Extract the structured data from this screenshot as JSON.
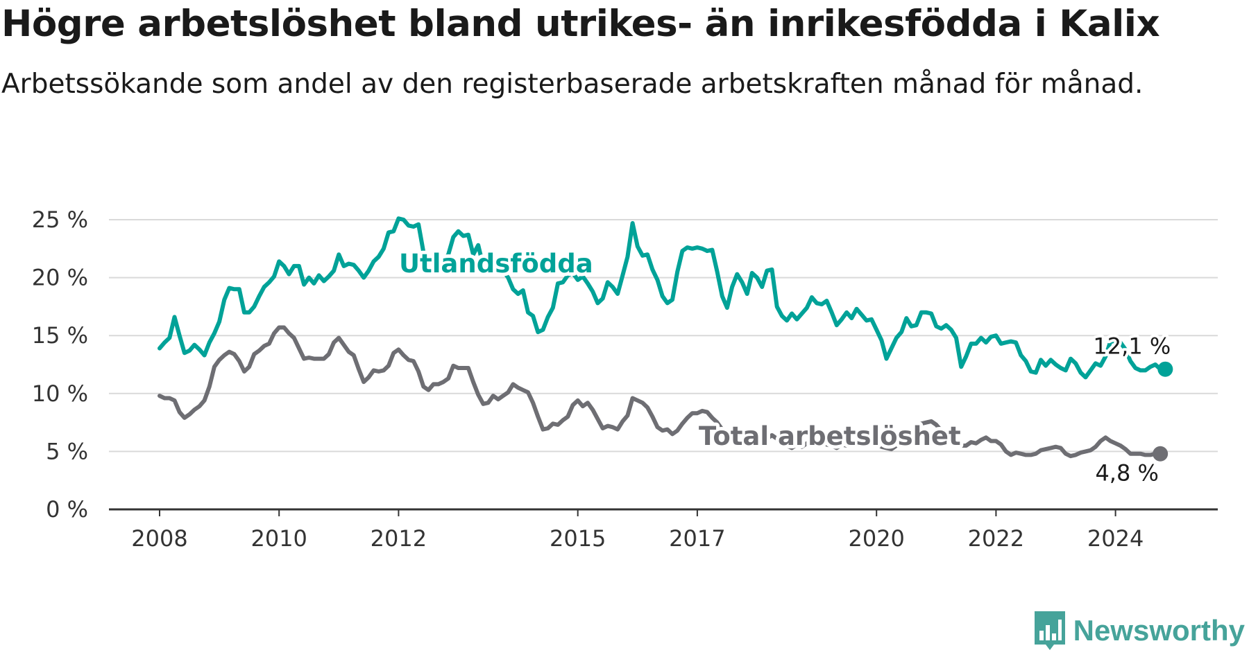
{
  "header": {
    "title": "Högre arbetslöshet bland utrikes- än inrikesfödda i Kalix",
    "subtitle": "Arbetssökande som andel av den registerbaserade arbetskraften månad för månad."
  },
  "brand": {
    "name": "Newsworthy",
    "color": "#46a39a",
    "logo_icon": "bar-chart-icon"
  },
  "chart_data": {
    "type": "line",
    "x_ticks": [
      "2008",
      "2010",
      "2012",
      "2015",
      "2017",
      "2020",
      "2022",
      "2024"
    ],
    "y_ticks": [
      "0 %",
      "5 %",
      "10 %",
      "15 %",
      "20 %",
      "25 %"
    ],
    "ylim": [
      0,
      25
    ],
    "xlim": [
      "2008-01",
      "2024-11"
    ],
    "grid": "horizontal",
    "legend": "inline labels",
    "series": [
      {
        "name": "Utlandsfödda",
        "color": "#00a298",
        "end_label": "12,1 %",
        "start": "2008-01",
        "values": [
          13.9,
          14.4,
          14.8,
          16.6,
          15.0,
          13.5,
          13.7,
          14.2,
          13.8,
          13.3,
          14.4,
          15.2,
          16.2,
          18.1,
          19.1,
          19.0,
          19.0,
          17.0,
          17.0,
          17.5,
          18.4,
          19.2,
          19.6,
          20.1,
          21.4,
          21.0,
          20.3,
          21.0,
          21.0,
          19.4,
          20.0,
          19.5,
          20.2,
          19.7,
          20.1,
          20.6,
          22.0,
          21.0,
          21.2,
          21.1,
          20.6,
          20.0,
          20.6,
          21.4,
          21.8,
          22.5,
          23.9,
          24.0,
          25.1,
          25.0,
          24.5,
          24.4,
          24.6,
          22.2,
          21.6,
          21.4,
          21.0,
          21.4,
          22.0,
          23.5,
          24.0,
          23.6,
          23.7,
          22.0,
          22.8,
          21.0,
          20.5,
          20.6,
          20.9,
          20.6,
          20.0,
          19.0,
          18.6,
          18.9,
          17.0,
          16.7,
          15.3,
          15.5,
          16.6,
          17.4,
          19.5,
          19.6,
          20.2,
          20.4,
          19.8,
          20.1,
          19.5,
          18.8,
          17.8,
          18.2,
          19.6,
          19.2,
          18.6,
          20.2,
          21.8,
          24.7,
          22.7,
          21.9,
          22.0,
          20.7,
          19.8,
          18.4,
          17.8,
          18.1,
          20.5,
          22.3,
          22.6,
          22.5,
          22.6,
          22.5,
          22.3,
          22.4,
          20.5,
          18.4,
          17.4,
          19.2,
          20.3,
          19.6,
          18.6,
          20.4,
          20.0,
          19.2,
          20.6,
          20.7,
          17.5,
          16.7,
          16.3,
          16.9,
          16.4,
          16.9,
          17.4,
          18.3,
          17.8,
          17.7,
          18.0,
          17.0,
          15.9,
          16.4,
          17.0,
          16.5,
          17.3,
          16.8,
          16.3,
          16.4,
          15.5,
          14.6,
          13.0,
          13.9,
          14.8,
          15.3,
          16.5,
          15.8,
          15.9,
          17.0,
          17.0,
          16.9,
          15.8,
          15.6,
          15.9,
          15.5,
          14.8,
          12.3,
          13.2,
          14.3,
          14.3,
          14.8,
          14.4,
          14.9,
          15.0,
          14.3,
          14.4,
          14.5,
          14.4,
          13.3,
          12.8,
          11.9,
          11.8,
          12.9,
          12.4,
          12.9,
          12.5,
          12.2,
          12.0,
          13.0,
          12.6,
          11.8,
          11.4,
          12.0,
          12.6,
          12.4,
          13.2,
          14.5,
          14.5,
          14.4,
          13.8,
          12.8,
          12.2,
          12.0,
          12.0,
          12.3,
          12.5,
          12.1,
          12.1
        ]
      },
      {
        "name": "Total arbetslöshet",
        "color": "#6e6e73",
        "end_label": "4,8 %",
        "start": "2008-01",
        "values": [
          9.8,
          9.6,
          9.6,
          9.4,
          8.4,
          7.9,
          8.2,
          8.6,
          8.9,
          9.4,
          10.6,
          12.3,
          12.9,
          13.3,
          13.6,
          13.4,
          12.8,
          11.9,
          12.3,
          13.4,
          13.7,
          14.1,
          14.3,
          15.2,
          15.7,
          15.7,
          15.2,
          14.8,
          13.9,
          13.0,
          13.1,
          13.0,
          13.0,
          13.0,
          13.4,
          14.4,
          14.8,
          14.2,
          13.6,
          13.3,
          12.1,
          11.0,
          11.4,
          12.0,
          11.9,
          12.0,
          12.4,
          13.5,
          13.8,
          13.3,
          12.9,
          12.8,
          11.9,
          10.6,
          10.3,
          10.8,
          10.8,
          11.0,
          11.3,
          12.4,
          12.2,
          12.2,
          12.2,
          11.0,
          9.9,
          9.1,
          9.2,
          9.8,
          9.5,
          9.8,
          10.1,
          10.8,
          10.5,
          10.3,
          10.1,
          9.2,
          8.0,
          6.9,
          7.0,
          7.4,
          7.3,
          7.7,
          8.0,
          9.0,
          9.4,
          8.9,
          9.2,
          8.6,
          7.8,
          7.0,
          7.2,
          7.1,
          6.9,
          7.6,
          8.1,
          9.6,
          9.4,
          9.2,
          8.8,
          8.0,
          7.1,
          6.8,
          6.9,
          6.5,
          6.8,
          7.4,
          7.9,
          8.3,
          8.3,
          8.5,
          8.4,
          7.9,
          7.5,
          6.9,
          6.8,
          6.3,
          6.0,
          6.0,
          6.3,
          6.6,
          6.2,
          6.4,
          6.1,
          6.4,
          6.1,
          5.6,
          5.5,
          5.3,
          5.6,
          5.4,
          5.7,
          5.9,
          5.6,
          5.8,
          5.6,
          5.5,
          5.3,
          5.6,
          5.5,
          5.8,
          5.6,
          5.6,
          5.8,
          6.0,
          5.7,
          5.4,
          5.3,
          5.2,
          5.5,
          6.0,
          6.2,
          6.6,
          7.0,
          7.4,
          7.5,
          7.6,
          7.3,
          6.8,
          6.4,
          6.0,
          5.5,
          5.5,
          5.5,
          5.8,
          5.7,
          6.0,
          6.2,
          5.9,
          5.9,
          5.6,
          5.0,
          4.7,
          4.9,
          4.8,
          4.7,
          4.7,
          4.8,
          5.1,
          5.2,
          5.3,
          5.4,
          5.3,
          4.8,
          4.6,
          4.7,
          4.9,
          5.0,
          5.1,
          5.4,
          5.9,
          6.2,
          5.9,
          5.7,
          5.5,
          5.2,
          4.8,
          4.8,
          4.8,
          4.7,
          4.7,
          4.8,
          4.8
        ]
      }
    ]
  }
}
